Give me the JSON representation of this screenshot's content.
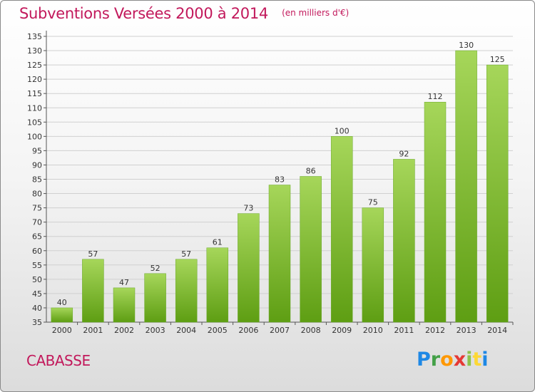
{
  "title": "Subventions Versées 2000 à 2014",
  "subtitle": "(en milliers d'€)",
  "commune": "CABASSE",
  "logo": {
    "text": "Proxiti",
    "colors": [
      "#1e88e5",
      "#43a047",
      "#ff9800",
      "#e53935",
      "#8bc34a",
      "#fdd835",
      "#1e88e5"
    ]
  },
  "colors": {
    "title": "#c2185b",
    "bar_top": "#a6d65a",
    "bar_bottom": "#5e9e13",
    "grid": "#d0d0d0",
    "axis": "#555555"
  },
  "chart_data": {
    "type": "bar",
    "categories": [
      "2000",
      "2001",
      "2002",
      "2003",
      "2004",
      "2005",
      "2006",
      "2007",
      "2008",
      "2009",
      "2010",
      "2011",
      "2012",
      "2013",
      "2014"
    ],
    "values": [
      40,
      57,
      47,
      52,
      57,
      61,
      73,
      83,
      86,
      100,
      75,
      92,
      112,
      130,
      125
    ],
    "ylim": [
      35,
      135
    ],
    "ytick_step": 5,
    "grid": true,
    "title": "Subventions Versées 2000 à 2014",
    "xlabel": "",
    "ylabel": ""
  }
}
